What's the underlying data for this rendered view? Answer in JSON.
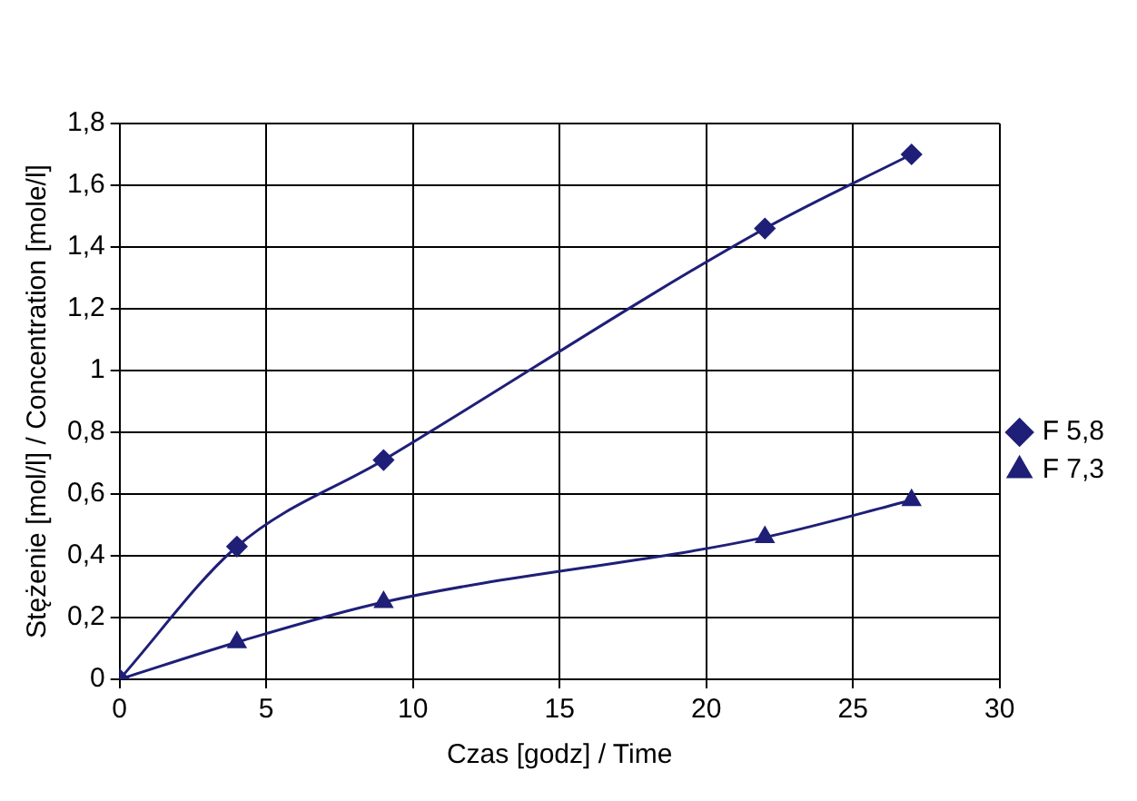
{
  "chart_data": {
    "type": "line",
    "xlabel": "Czas [godz] / Time",
    "ylabel": "Stężenie [mol/l] / Concentration [mole/l]",
    "x": [
      0,
      4,
      9,
      22,
      27
    ],
    "series": [
      {
        "name": "F 5,8",
        "color": "#1f1f78",
        "marker": "diamond",
        "values": [
          0,
          0.43,
          0.71,
          1.46,
          1.7
        ]
      },
      {
        "name": "F 7,3",
        "color": "#1f1f78",
        "marker": "triangle",
        "values": [
          0,
          0.12,
          0.25,
          0.46,
          0.58
        ]
      }
    ],
    "xlim": [
      0,
      30
    ],
    "xticks": [
      0,
      5,
      10,
      15,
      20,
      25,
      30
    ],
    "ylim": [
      0,
      1.8
    ],
    "yticks": [
      0,
      {
        "value": 0.2,
        "label": "0,2"
      },
      {
        "value": 0.4,
        "label": "0,4"
      },
      {
        "value": 0.6,
        "label": "0,6"
      },
      {
        "value": 0.8,
        "label": "0,8"
      },
      1,
      {
        "value": 1.2,
        "label": "1,2"
      },
      {
        "value": 1.4,
        "label": "1,4"
      },
      {
        "value": 1.6,
        "label": "1,6"
      },
      {
        "value": 1.8,
        "label": "1,8"
      }
    ],
    "grid": true,
    "legend": "right",
    "line_style": "solid"
  }
}
